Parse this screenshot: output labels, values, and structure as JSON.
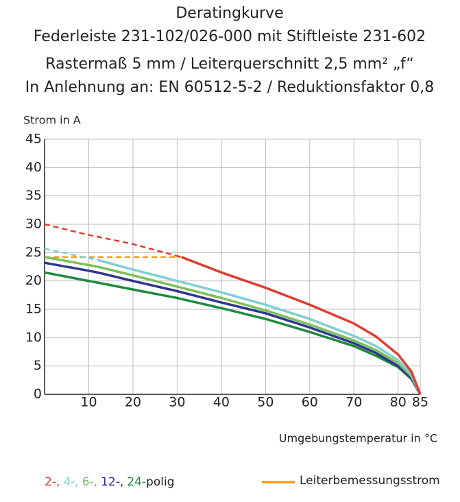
{
  "chart_data": {
    "type": "line",
    "title": [
      "Deratingkurve",
      "Federleiste 231-102/026-000 mit Stiftleiste 231-602",
      "Rastermaß 5 mm / Leiterquerschnitt 2,5 mm² „f“",
      "In Anlehnung an: EN 60512-5-2 / Reduktionsfaktor 0,8"
    ],
    "y_label": "Strom in A",
    "x_label": "Umgebungstemperatur in °C",
    "legend_suffix": "polig",
    "x": [
      0,
      10,
      12,
      20,
      30,
      31,
      40,
      50,
      60,
      70,
      75,
      80,
      83,
      85
    ],
    "series": [
      {
        "name": "2-,",
        "color": "#e03c31",
        "values": [
          null,
          null,
          null,
          null,
          null,
          24.2,
          21.5,
          18.8,
          15.8,
          12.5,
          10.2,
          7,
          4,
          0
        ],
        "dashed_values": [
          30,
          28.1,
          27.8,
          26.5,
          24.4,
          24.2,
          null,
          null,
          null,
          null,
          null,
          null,
          null,
          null
        ]
      },
      {
        "name": "4-,",
        "color": "#7fcfd3",
        "values": [
          null,
          null,
          23.7,
          22,
          20,
          19.8,
          18,
          15.8,
          13.3,
          10.3,
          8.5,
          6,
          3.5,
          0
        ],
        "dashed_values": [
          25.7,
          24,
          23.7,
          null,
          null,
          null,
          null,
          null,
          null,
          null,
          null,
          null,
          null,
          null
        ]
      },
      {
        "name": "6-,",
        "color": "#7dc05a",
        "values": [
          24.2,
          22.8,
          22.5,
          21,
          19,
          18.8,
          17,
          14.8,
          12.3,
          9.5,
          7.8,
          5.5,
          3.2,
          0
        ]
      },
      {
        "name": "12-,",
        "color": "#2e3590",
        "values": [
          23.2,
          21.8,
          21.5,
          20,
          18.2,
          18,
          16.2,
          14.3,
          11.8,
          9,
          7.3,
          5,
          2.9,
          0
        ]
      },
      {
        "name": "24-",
        "color": "#1e8a3e",
        "values": [
          21.5,
          20,
          19.7,
          18.5,
          17,
          16.8,
          15.2,
          13.3,
          11,
          8.5,
          6.8,
          4.8,
          2.7,
          0
        ]
      },
      {
        "name": "Leiterbemessungsstrom",
        "color": "#f39a1f",
        "values": [
          24.2,
          24.2,
          24.2,
          24.2,
          24.2,
          24.2,
          null,
          null,
          null,
          null,
          null,
          null,
          null,
          null
        ]
      }
    ],
    "xlim": [
      0,
      85
    ],
    "xticks": [
      10,
      20,
      30,
      40,
      50,
      60,
      70,
      80,
      85
    ],
    "ylim": [
      0,
      45
    ],
    "yticks": [
      0,
      5,
      10,
      15,
      20,
      25,
      30,
      35,
      40,
      45
    ],
    "grid": true
  }
}
